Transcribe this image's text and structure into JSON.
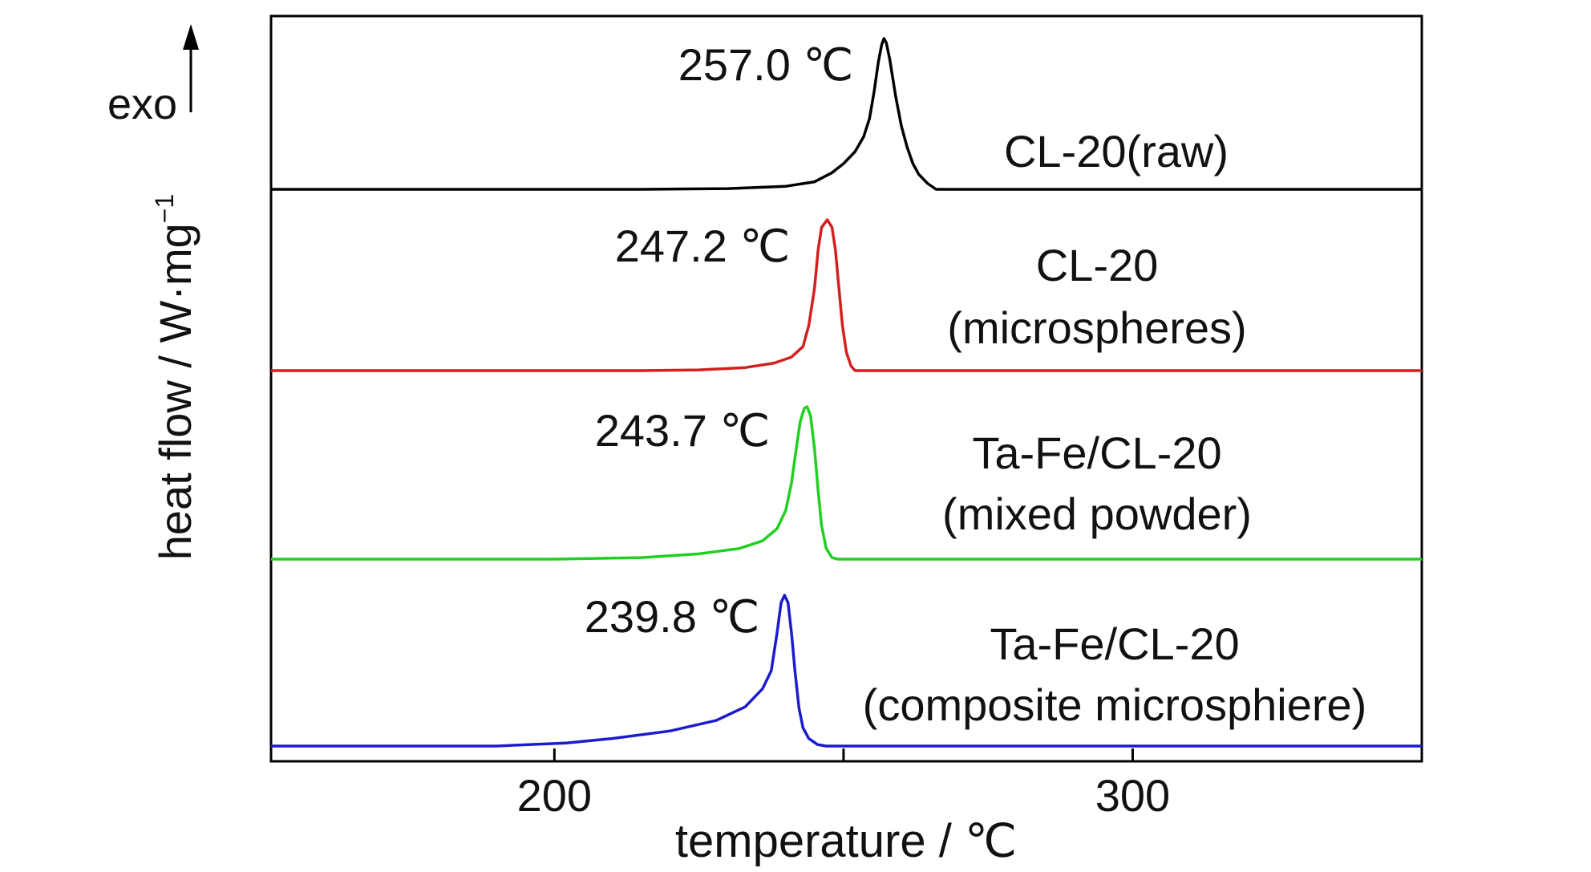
{
  "chart_data": {
    "type": "line",
    "title": "",
    "xlabel": "temperature / ℃",
    "ylabel": "heat flow / W·mg",
    "ylabel_superscript": "−1",
    "exo_label": "exo",
    "xlim": [
      151,
      350
    ],
    "x_ticks": [
      {
        "value": 200,
        "label": "200"
      },
      {
        "value": 250,
        "label": ""
      },
      {
        "value": 300,
        "label": "300"
      }
    ],
    "grid": false,
    "series": [
      {
        "color": "#000000",
        "peak_label": "257.0 ℃",
        "sample_label": [
          "CL-20(raw)"
        ],
        "points": [
          [
            151,
            0
          ],
          [
            215,
            0
          ],
          [
            230,
            0.005
          ],
          [
            240,
            0.02
          ],
          [
            245,
            0.05
          ],
          [
            248,
            0.11
          ],
          [
            250,
            0.17
          ],
          [
            252,
            0.25
          ],
          [
            253.5,
            0.35
          ],
          [
            254.5,
            0.47
          ],
          [
            255.3,
            0.65
          ],
          [
            256,
            0.84
          ],
          [
            256.6,
            0.96
          ],
          [
            257,
            1
          ],
          [
            257.4,
            0.97
          ],
          [
            258,
            0.86
          ],
          [
            259,
            0.62
          ],
          [
            260,
            0.42
          ],
          [
            261,
            0.28
          ],
          [
            262,
            0.17
          ],
          [
            263,
            0.1
          ],
          [
            264.5,
            0.04
          ],
          [
            266,
            0
          ],
          [
            350,
            0
          ]
        ]
      },
      {
        "color": "#d22020",
        "peak_label": "247.2 ℃",
        "sample_label": [
          "CL-20",
          "(microspheres)"
        ],
        "points": [
          [
            151,
            0
          ],
          [
            215,
            0
          ],
          [
            225,
            0.005
          ],
          [
            233,
            0.02
          ],
          [
            238,
            0.05
          ],
          [
            241,
            0.09
          ],
          [
            243,
            0.16
          ],
          [
            244,
            0.3
          ],
          [
            245,
            0.55
          ],
          [
            245.6,
            0.8
          ],
          [
            246.2,
            0.95
          ],
          [
            247.2,
            1
          ],
          [
            248,
            0.95
          ],
          [
            248.6,
            0.8
          ],
          [
            249.2,
            0.55
          ],
          [
            249.8,
            0.3
          ],
          [
            250.5,
            0.12
          ],
          [
            251.3,
            0.03
          ],
          [
            252,
            0
          ],
          [
            350,
            0
          ]
        ]
      },
      {
        "color": "#20d020",
        "peak_label": "243.7 ℃",
        "sample_label": [
          "Ta-Fe/CL-20",
          "(mixed powder)"
        ],
        "points": [
          [
            151,
            0
          ],
          [
            200,
            0
          ],
          [
            215,
            0.01
          ],
          [
            225,
            0.035
          ],
          [
            232,
            0.07
          ],
          [
            236,
            0.12
          ],
          [
            238.5,
            0.2
          ],
          [
            240,
            0.32
          ],
          [
            241,
            0.5
          ],
          [
            241.8,
            0.72
          ],
          [
            242.5,
            0.9
          ],
          [
            243.2,
            0.99
          ],
          [
            243.7,
            1
          ],
          [
            244.3,
            0.94
          ],
          [
            245,
            0.72
          ],
          [
            245.6,
            0.45
          ],
          [
            246.2,
            0.22
          ],
          [
            247,
            0.07
          ],
          [
            248,
            0.01
          ],
          [
            249,
            0
          ],
          [
            350,
            0
          ]
        ]
      },
      {
        "color": "#1c1ccc",
        "peak_label": "239.8 ℃",
        "sample_label": [
          "Ta-Fe/CL-20",
          "(composite microsphiere)"
        ],
        "points": [
          [
            151,
            0
          ],
          [
            190,
            0
          ],
          [
            202,
            0.02
          ],
          [
            210,
            0.05
          ],
          [
            220,
            0.1
          ],
          [
            228,
            0.17
          ],
          [
            233,
            0.26
          ],
          [
            236,
            0.38
          ],
          [
            237.5,
            0.5
          ],
          [
            238.5,
            0.75
          ],
          [
            239.2,
            0.95
          ],
          [
            239.8,
            1
          ],
          [
            240.4,
            0.95
          ],
          [
            241,
            0.75
          ],
          [
            241.6,
            0.5
          ],
          [
            242.3,
            0.25
          ],
          [
            243,
            0.12
          ],
          [
            244,
            0.05
          ],
          [
            245.5,
            0.01
          ],
          [
            247,
            0
          ],
          [
            350,
            0
          ]
        ]
      }
    ]
  }
}
